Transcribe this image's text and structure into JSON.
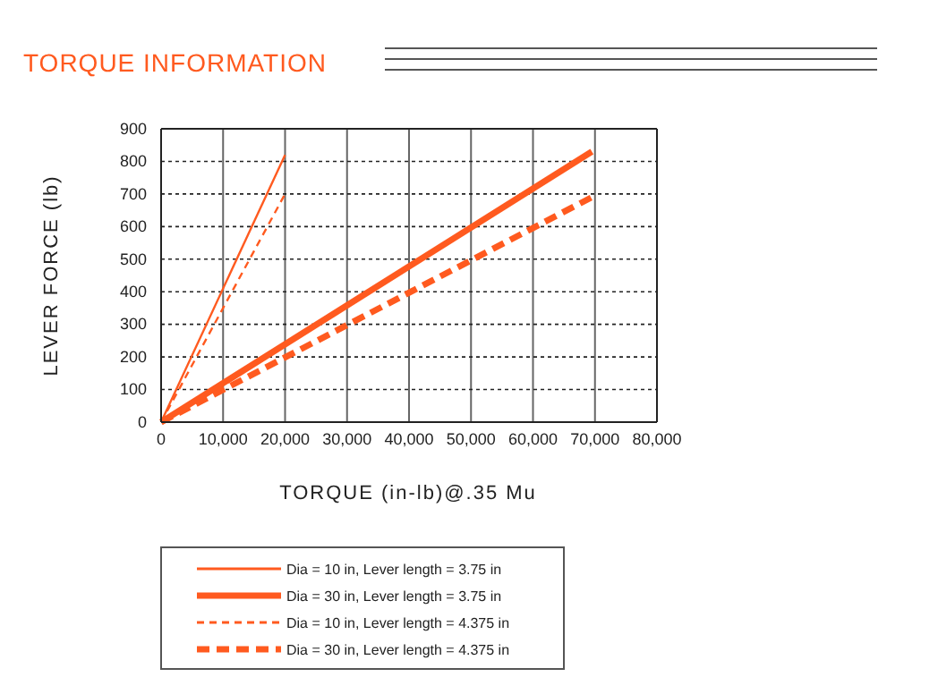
{
  "chart_data": {
    "type": "line",
    "title": "TORQUE INFORMATION",
    "xlabel": "TORQUE (in-lb)@.35 Mu",
    "ylabel": "LEVER FORCE (lb)",
    "xlim": [
      0,
      80000
    ],
    "ylim": [
      0,
      900
    ],
    "xticks": [
      {
        "value": 0,
        "label": "0"
      },
      {
        "value": 10000,
        "label": "10,000"
      },
      {
        "value": 20000,
        "label": "20,000"
      },
      {
        "value": 30000,
        "label": "30,000"
      },
      {
        "value": 40000,
        "label": "40,000"
      },
      {
        "value": 50000,
        "label": "50,000"
      },
      {
        "value": 60000,
        "label": "60,000"
      },
      {
        "value": 70000,
        "label": "70,000"
      },
      {
        "value": 80000,
        "label": "80,000"
      }
    ],
    "yticks": [
      0,
      100,
      200,
      300,
      400,
      500,
      600,
      700,
      800,
      900
    ],
    "grid": true,
    "legend": "bottom",
    "marker": "none",
    "series": [
      {
        "name": "Dia = 10 in, Lever length = 3.75 in",
        "color": "#ff5a1f",
        "x": [
          0,
          20000
        ],
        "values": [
          0,
          820
        ],
        "line_style": "solid"
      },
      {
        "name": "Dia = 30 in, Lever length = 3.75 in",
        "color": "#ff5a1f",
        "x": [
          0,
          69500
        ],
        "values": [
          0,
          830
        ],
        "line_style": "solid"
      },
      {
        "name": "Dia = 10 in, Lever length = 4.375 in",
        "color": "#ff5a1f",
        "x": [
          0,
          20000
        ],
        "values": [
          0,
          700
        ],
        "line_style": "dashed"
      },
      {
        "name": "Dia = 30 in, Lever length = 4.375 in",
        "color": "#ff5a1f",
        "x": [
          0,
          69500
        ],
        "values": [
          0,
          690
        ],
        "line_style": "dashed"
      }
    ]
  }
}
